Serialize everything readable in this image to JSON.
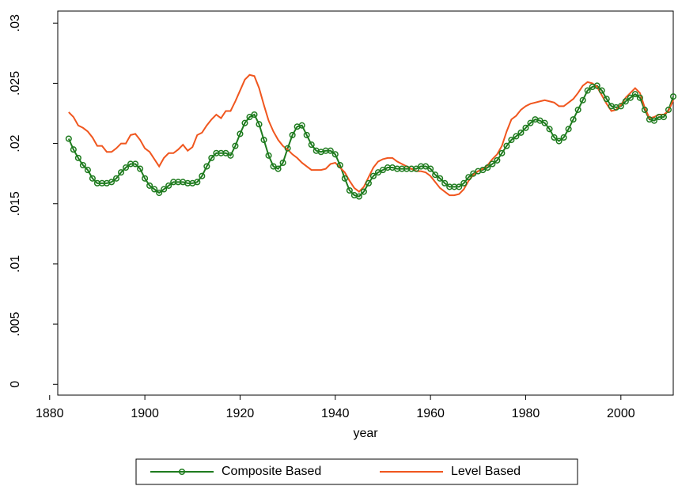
{
  "chart_data": {
    "type": "line",
    "x_label": "year",
    "x": [
      1884,
      1885,
      1886,
      1887,
      1888,
      1889,
      1890,
      1891,
      1892,
      1893,
      1894,
      1895,
      1896,
      1897,
      1898,
      1899,
      1900,
      1901,
      1902,
      1903,
      1904,
      1905,
      1906,
      1907,
      1908,
      1909,
      1910,
      1911,
      1912,
      1913,
      1914,
      1915,
      1916,
      1917,
      1918,
      1919,
      1920,
      1921,
      1922,
      1923,
      1924,
      1925,
      1926,
      1927,
      1928,
      1929,
      1930,
      1931,
      1932,
      1933,
      1934,
      1935,
      1936,
      1937,
      1938,
      1939,
      1940,
      1941,
      1942,
      1943,
      1944,
      1945,
      1946,
      1947,
      1948,
      1949,
      1950,
      1951,
      1952,
      1953,
      1954,
      1955,
      1956,
      1957,
      1958,
      1959,
      1960,
      1961,
      1962,
      1963,
      1964,
      1965,
      1966,
      1967,
      1968,
      1969,
      1970,
      1971,
      1972,
      1973,
      1974,
      1975,
      1976,
      1977,
      1978,
      1979,
      1980,
      1981,
      1982,
      1983,
      1984,
      1985,
      1986,
      1987,
      1988,
      1989,
      1990,
      1991,
      1992,
      1993,
      1994,
      1995,
      1996,
      1997,
      1998,
      1999,
      2000,
      2001,
      2002,
      2003,
      2004,
      2005,
      2006,
      2007,
      2008,
      2009,
      2010,
      2011
    ],
    "series": [
      {
        "name": "Composite Based",
        "color": "#1e7b1e",
        "marker": "circle",
        "values": [
          0.0204,
          0.0195,
          0.0188,
          0.0182,
          0.0178,
          0.0171,
          0.0167,
          0.0167,
          0.0167,
          0.0168,
          0.0171,
          0.0176,
          0.018,
          0.0183,
          0.0183,
          0.0179,
          0.0171,
          0.0165,
          0.0162,
          0.0159,
          0.0162,
          0.0165,
          0.0168,
          0.0168,
          0.0168,
          0.0167,
          0.0167,
          0.0168,
          0.0173,
          0.0181,
          0.0188,
          0.0192,
          0.0192,
          0.0192,
          0.019,
          0.0198,
          0.0208,
          0.0217,
          0.0222,
          0.0224,
          0.0216,
          0.0203,
          0.019,
          0.0181,
          0.0179,
          0.0184,
          0.0196,
          0.0207,
          0.0214,
          0.0215,
          0.0207,
          0.0199,
          0.0194,
          0.0193,
          0.0194,
          0.0194,
          0.0191,
          0.0182,
          0.0171,
          0.0161,
          0.0157,
          0.0156,
          0.016,
          0.0167,
          0.0173,
          0.0176,
          0.0178,
          0.018,
          0.018,
          0.0179,
          0.0179,
          0.0179,
          0.0179,
          0.0179,
          0.0181,
          0.0181,
          0.0179,
          0.0174,
          0.0171,
          0.0167,
          0.0164,
          0.0164,
          0.0164,
          0.0167,
          0.0172,
          0.0175,
          0.0177,
          0.0178,
          0.018,
          0.0183,
          0.0186,
          0.0192,
          0.0198,
          0.0203,
          0.0206,
          0.0209,
          0.0213,
          0.0217,
          0.022,
          0.0219,
          0.0217,
          0.0212,
          0.0205,
          0.0202,
          0.0205,
          0.0212,
          0.022,
          0.0228,
          0.0236,
          0.0244,
          0.0247,
          0.0248,
          0.0244,
          0.0237,
          0.0231,
          0.023,
          0.0231,
          0.0235,
          0.0238,
          0.0241,
          0.0238,
          0.0228,
          0.022,
          0.0219,
          0.0222,
          0.0222,
          0.0228,
          0.0239
        ]
      },
      {
        "name": "Level Based",
        "color": "#f0561e",
        "values": [
          0.0226,
          0.0222,
          0.0215,
          0.0213,
          0.021,
          0.0205,
          0.0198,
          0.0198,
          0.0193,
          0.0193,
          0.0196,
          0.02,
          0.02,
          0.0207,
          0.0208,
          0.0203,
          0.0196,
          0.0193,
          0.0187,
          0.0181,
          0.0188,
          0.0192,
          0.0192,
          0.0195,
          0.0199,
          0.0194,
          0.0197,
          0.0207,
          0.0209,
          0.0215,
          0.022,
          0.0224,
          0.0221,
          0.0227,
          0.0227,
          0.0235,
          0.0244,
          0.0253,
          0.0257,
          0.0256,
          0.0246,
          0.0232,
          0.0219,
          0.021,
          0.0203,
          0.0198,
          0.0195,
          0.0191,
          0.0188,
          0.0184,
          0.0181,
          0.0178,
          0.0178,
          0.0178,
          0.0179,
          0.0183,
          0.0184,
          0.018,
          0.0176,
          0.0169,
          0.0163,
          0.016,
          0.0164,
          0.0172,
          0.018,
          0.0185,
          0.0187,
          0.0188,
          0.0188,
          0.0185,
          0.0183,
          0.0181,
          0.0179,
          0.0177,
          0.0177,
          0.0176,
          0.0173,
          0.0168,
          0.0163,
          0.016,
          0.0157,
          0.0157,
          0.0158,
          0.0162,
          0.0169,
          0.0174,
          0.0177,
          0.0179,
          0.0182,
          0.0187,
          0.0191,
          0.0198,
          0.021,
          0.022,
          0.0223,
          0.0228,
          0.0231,
          0.0233,
          0.0234,
          0.0235,
          0.0236,
          0.0235,
          0.0234,
          0.0231,
          0.0231,
          0.0234,
          0.0237,
          0.0242,
          0.0248,
          0.0251,
          0.025,
          0.0247,
          0.024,
          0.0233,
          0.0227,
          0.0228,
          0.0232,
          0.0238,
          0.0242,
          0.0246,
          0.0242,
          0.023,
          0.0221,
          0.0222,
          0.0224,
          0.0224,
          0.0227,
          0.0236
        ]
      }
    ],
    "xlim": [
      1881.7,
      2011
    ],
    "xticks": [
      1880,
      1900,
      1920,
      1940,
      1960,
      1980,
      2000
    ],
    "ylim": [
      -0.0009,
      0.031
    ],
    "yticks": [
      0,
      {
        "value": 0.005,
        "label": ".005"
      },
      {
        "value": 0.01,
        "label": ".01"
      },
      {
        "value": 0.015,
        "label": ".015"
      },
      {
        "value": 0.02,
        "label": ".02"
      },
      {
        "value": 0.025,
        "label": ".025"
      },
      {
        "value": 0.03,
        "label": ".03"
      }
    ],
    "grid": false,
    "legend": "bottom"
  }
}
